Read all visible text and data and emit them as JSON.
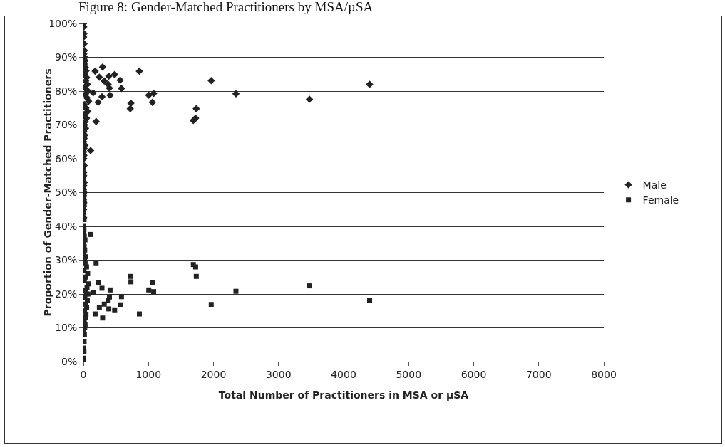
{
  "chart_data": {
    "type": "scatter",
    "title": "Figure 8: Gender-Matched Practitioners by MSA/µSA",
    "xlabel": "Total Number of Practitioners in MSA or µSA",
    "ylabel": "Proportion of Gender-Matched Practitioners",
    "xlim": [
      0,
      8000
    ],
    "xticks": [
      0,
      1000,
      2000,
      3000,
      4000,
      5000,
      6000,
      7000,
      8000
    ],
    "ylim": [
      0,
      100
    ],
    "yticks": [
      {
        "value": 0,
        "label": "0%"
      },
      {
        "value": 10,
        "label": "10%"
      },
      {
        "value": 20,
        "label": "20%"
      },
      {
        "value": 30,
        "label": "30%"
      },
      {
        "value": 40,
        "label": "40%"
      },
      {
        "value": 50,
        "label": "50%"
      },
      {
        "value": 60,
        "label": "60%"
      },
      {
        "value": 70,
        "label": "70%"
      },
      {
        "value": 80,
        "label": "80%"
      },
      {
        "value": 90,
        "label": "90%"
      },
      {
        "value": 100,
        "label": "100%"
      }
    ],
    "grid": "y",
    "legend": "right",
    "series": [
      {
        "name": "Male",
        "color": "#222222",
        "marker": "diamond",
        "x": [
          4400,
          3475,
          2345,
          1965,
          1735,
          1725,
          1690,
          1060,
          1005,
          1080,
          730,
          720,
          860,
          585,
          565,
          480,
          390,
          295,
          180,
          245,
          320,
          380,
          400,
          410,
          285,
          225,
          150,
          195,
          110,
          2,
          5,
          8,
          3,
          10,
          15,
          6,
          20,
          25,
          12,
          30,
          40,
          18,
          50,
          35,
          60,
          22,
          70,
          28,
          55,
          80,
          14,
          38,
          65,
          9,
          48,
          26,
          16,
          32,
          7,
          20,
          11,
          4,
          24,
          13,
          3,
          8,
          5,
          10,
          6,
          4,
          12,
          7,
          3,
          9,
          5,
          2,
          6,
          4,
          3,
          5
        ],
        "values": [
          82.0,
          77.6,
          79.2,
          83.1,
          74.8,
          72.0,
          71.3,
          76.7,
          78.8,
          79.3,
          76.4,
          74.8,
          85.9,
          80.8,
          83.2,
          84.9,
          84.4,
          87.1,
          85.9,
          84.1,
          83.0,
          82.0,
          80.9,
          78.8,
          78.3,
          76.7,
          79.5,
          71.0,
          62.4,
          100,
          99,
          97,
          96,
          94,
          92,
          91,
          90,
          89,
          88,
          87,
          86,
          85,
          84,
          83,
          82,
          81,
          80,
          79,
          78,
          77,
          76,
          75,
          74,
          73,
          72,
          71,
          70,
          69,
          68,
          67,
          66,
          65,
          64,
          63,
          62,
          61,
          60,
          58,
          56,
          55,
          53,
          52,
          51,
          50,
          49,
          48,
          47,
          46,
          45,
          42.6
        ]
      },
      {
        "name": "Female",
        "color": "#222222",
        "marker": "square",
        "x": [
          4400,
          3475,
          2345,
          1965,
          1735,
          1725,
          1690,
          1060,
          1005,
          1080,
          730,
          720,
          860,
          585,
          565,
          480,
          390,
          295,
          180,
          245,
          320,
          380,
          400,
          410,
          285,
          225,
          150,
          195,
          110,
          2,
          5,
          8,
          3,
          10,
          15,
          6,
          20,
          25,
          12,
          30,
          40,
          18,
          50,
          35,
          60,
          22,
          45,
          70,
          28,
          55,
          80,
          14,
          38,
          65,
          9,
          48,
          26,
          16,
          32,
          7,
          20,
          11,
          4,
          24,
          13,
          3,
          8,
          5,
          10,
          6,
          12,
          7,
          9,
          6,
          4,
          5
        ],
        "values": [
          18.0,
          22.4,
          20.8,
          16.9,
          25.2,
          28.0,
          28.7,
          23.3,
          21.2,
          20.7,
          23.6,
          25.2,
          14.1,
          19.2,
          16.8,
          15.1,
          15.6,
          12.9,
          14.1,
          15.9,
          17.0,
          18.0,
          19.1,
          21.2,
          21.7,
          23.3,
          20.5,
          29.0,
          37.6,
          0,
          1,
          3,
          4,
          6,
          8,
          9,
          10,
          11,
          12,
          13,
          14,
          15,
          16,
          17,
          18,
          19,
          20,
          20,
          21,
          22,
          23,
          24,
          25,
          26,
          27,
          28,
          29,
          30,
          31,
          32,
          33,
          34,
          35,
          36,
          37,
          38,
          39,
          40,
          42,
          44,
          47,
          48,
          50,
          53,
          54,
          57.4
        ]
      }
    ]
  }
}
